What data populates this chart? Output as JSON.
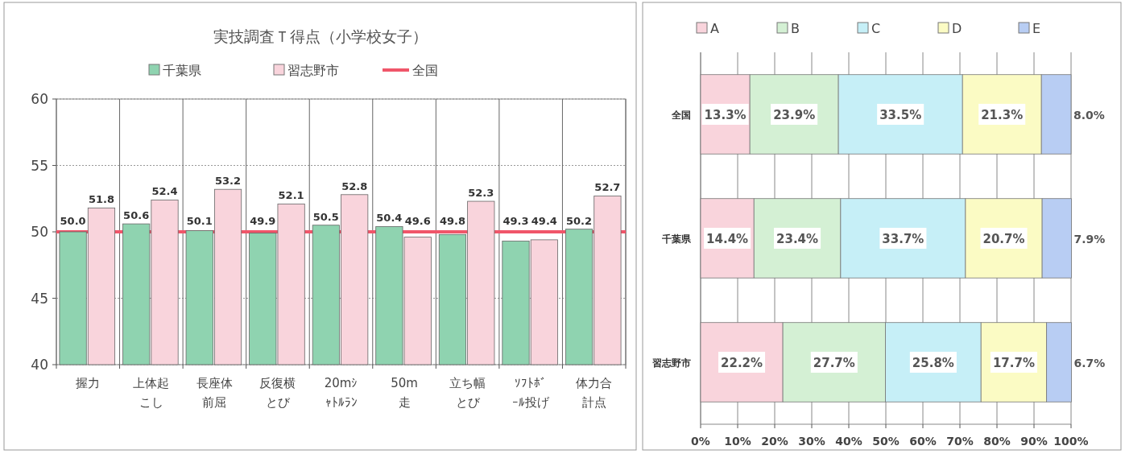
{
  "chart_data": [
    {
      "type": "bar",
      "title": "実技調査Ｔ得点（小学校女子）",
      "categories": [
        "握力",
        "上体起こし",
        "長座体前屈",
        "反復横とび",
        "20mｼｬﾄﾙﾗﾝ",
        "50m走",
        "立ち幅とび",
        "ｿﾌﾄﾎﾞｰﾙ投げ",
        "体力合計点"
      ],
      "series": [
        {
          "name": "千葉県",
          "color": "#8fd3b0",
          "values": [
            50.0,
            50.6,
            50.1,
            49.9,
            50.5,
            50.4,
            49.8,
            49.3,
            50.2
          ],
          "value_labels": [
            "50.0",
            "50.6",
            "50.1",
            "49.9",
            "50.5",
            "50.4",
            "49.8",
            "49.3",
            "50.2"
          ]
        },
        {
          "name": "習志野市",
          "color": "#f9d4dc",
          "values": [
            51.8,
            52.4,
            53.2,
            52.1,
            52.8,
            49.6,
            52.3,
            49.4,
            52.7
          ],
          "value_labels": [
            "51.8",
            "52.4",
            "53.2",
            "52.1",
            "52.8",
            "49.6",
            "52.3",
            "49.4",
            "52.7"
          ]
        }
      ],
      "ylim": [
        40,
        60
      ],
      "yticks": [
        40,
        45,
        50,
        55,
        60
      ],
      "grid": true,
      "legend": "top",
      "ref_lines": [
        {
          "axis": "y",
          "value": 50,
          "label": "全国",
          "color": "#f0566a"
        }
      ]
    },
    {
      "type": "bar",
      "orientation": "horizontal",
      "stacked": true,
      "categories": [
        "全国",
        "千葉県",
        "習志野市"
      ],
      "series": [
        {
          "name": "A",
          "color": "#f9d4dc",
          "values": [
            13.3,
            14.4,
            22.2
          ],
          "value_labels": [
            "13.3%",
            "14.4%",
            "22.2%"
          ]
        },
        {
          "name": "B",
          "color": "#d4f0d4",
          "values": [
            23.9,
            23.4,
            27.7
          ],
          "value_labels": [
            "23.9%",
            "23.4%",
            "27.7%"
          ]
        },
        {
          "name": "C",
          "color": "#c6eff7",
          "values": [
            33.5,
            33.7,
            25.8
          ],
          "value_labels": [
            "33.5%",
            "33.7%",
            "25.8%"
          ]
        },
        {
          "name": "D",
          "color": "#fbfbc4",
          "values": [
            21.3,
            20.7,
            17.7
          ],
          "value_labels": [
            "21.3%",
            "20.7%",
            "17.7%"
          ]
        },
        {
          "name": "E",
          "color": "#b8cdf3",
          "values": [
            8.0,
            7.9,
            6.7
          ],
          "value_labels": [
            "8.0%",
            "7.9%",
            "6.7%"
          ]
        }
      ],
      "xlim": [
        0,
        100
      ],
      "xticks": [
        {
          "value": 0,
          "label": "0%"
        },
        {
          "value": 10,
          "label": "10%"
        },
        {
          "value": 20,
          "label": "20%"
        },
        {
          "value": 30,
          "label": "30%"
        },
        {
          "value": 40,
          "label": "40%"
        },
        {
          "value": 50,
          "label": "50%"
        },
        {
          "value": 60,
          "label": "60%"
        },
        {
          "value": 70,
          "label": "70%"
        },
        {
          "value": 80,
          "label": "80%"
        },
        {
          "value": 90,
          "label": "90%"
        },
        {
          "value": 100,
          "label": "100%"
        }
      ],
      "grid": "x",
      "legend": "top"
    }
  ]
}
